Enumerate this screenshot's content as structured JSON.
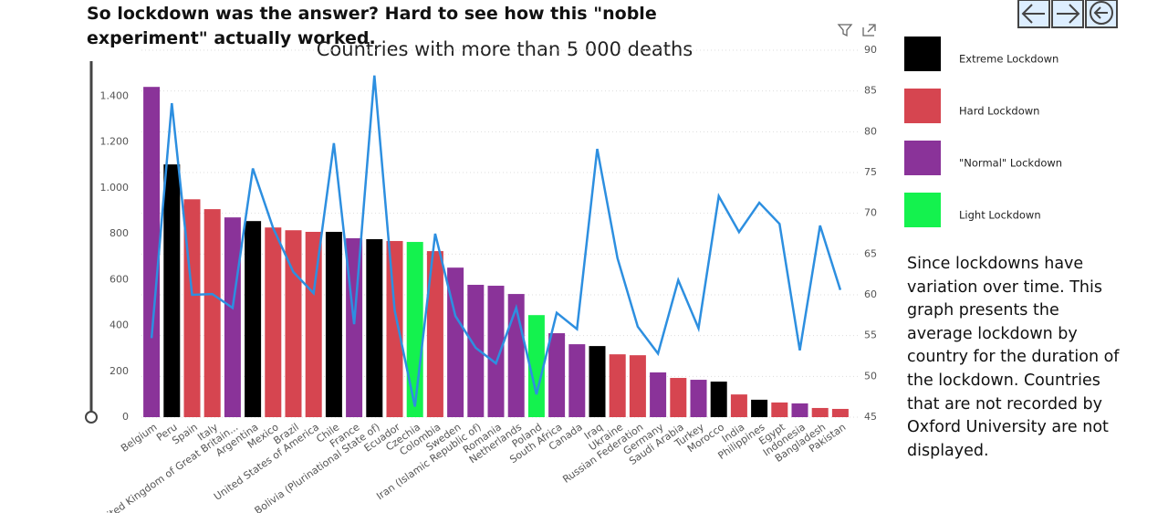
{
  "header": {
    "title": "So lockdown was the answer? Hard to see how this \"noble experiment\" actually worked."
  },
  "note": "Since lockdowns have variation over time. This graph presents the average lockdown by country for the duration of the lockdown. Countries that are not recorded by Oxford University are not displayed.",
  "chart_data": {
    "type": "bar-line",
    "title": "Countries with more than 5 000 deaths",
    "categories": [
      "Belgium",
      "Peru",
      "Spain",
      "Italy",
      "United Kingdom of Great Britain...",
      "Argentina",
      "Mexico",
      "Brazil",
      "United States of America",
      "Chile",
      "France",
      "Bolivia (Plurinational State of)",
      "Ecuador",
      "Czechia",
      "Colombia",
      "Sweden",
      "Iran (Islamic Republic of)",
      "Romania",
      "Netherlands",
      "Poland",
      "South Africa",
      "Canada",
      "Iraq",
      "Ukraine",
      "Russian Federation",
      "Germany",
      "Saudi Arabia",
      "Turkey",
      "Morocco",
      "India",
      "Philippines",
      "Egypt",
      "Indonesia",
      "Bangladesh",
      "Pakistan"
    ],
    "series": [
      {
        "values": [
          1440,
          1102,
          950,
          907,
          871,
          855,
          827,
          815,
          808,
          808,
          780,
          776,
          768,
          764,
          724,
          652,
          577,
          573,
          537,
          445,
          366,
          318,
          310,
          274,
          270,
          195,
          171,
          163,
          155,
          99,
          76,
          64,
          60,
          40,
          36
        ],
        "colors": [
          "#8a3399",
          "#000000",
          "#d64550",
          "#d64550",
          "#8a3399",
          "#000000",
          "#d64550",
          "#d64550",
          "#d64550",
          "#000000",
          "#8a3399",
          "#000000",
          "#d64550",
          "#14f24e",
          "#d64550",
          "#8a3399",
          "#8a3399",
          "#8a3399",
          "#8a3399",
          "#14f24e",
          "#8a3399",
          "#8a3399",
          "#000000",
          "#d64550",
          "#d64550",
          "#8a3399",
          "#d64550",
          "#8a3399",
          "#000000",
          "#d64550",
          "#000000",
          "#d64550",
          "#8a3399",
          "#d64550",
          "#d64550"
        ]
      },
      {
        "axis": "y2",
        "color": "#2d8fe0",
        "values": [
          54.7,
          83.5,
          60.0,
          60.1,
          58.4,
          75.5,
          68.2,
          62.8,
          60.2,
          78.6,
          56.4,
          86.9,
          58.1,
          46.3,
          67.5,
          57.4,
          53.5,
          51.6,
          58.4,
          47.8,
          57.8,
          55.8,
          77.9,
          64.5,
          56.1,
          52.8,
          61.8,
          55.9,
          72.1,
          67.7,
          71.3,
          68.7,
          53.2,
          68.5,
          60.6
        ]
      }
    ],
    "ylim": [
      0,
      1600
    ],
    "yticks": [
      0,
      200,
      400,
      600,
      800,
      {
        "value": 1000,
        "label": "1.000"
      },
      {
        "value": 1200,
        "label": "1.200"
      },
      {
        "value": 1400,
        "label": "1.400"
      }
    ],
    "y2lim": [
      45,
      90
    ],
    "y2ticks": [
      45,
      50,
      55,
      60,
      65,
      70,
      75,
      80,
      85,
      90
    ],
    "grid": true,
    "legend": [
      {
        "label": "Extreme Lockdown",
        "color": "#000000"
      },
      {
        "label": "Hard Lockdown",
        "color": "#d64550"
      },
      {
        "label": "\"Normal\" Lockdown",
        "color": "#8a3399"
      },
      {
        "label": "Light Lockdown",
        "color": "#14f24e"
      }
    ]
  }
}
